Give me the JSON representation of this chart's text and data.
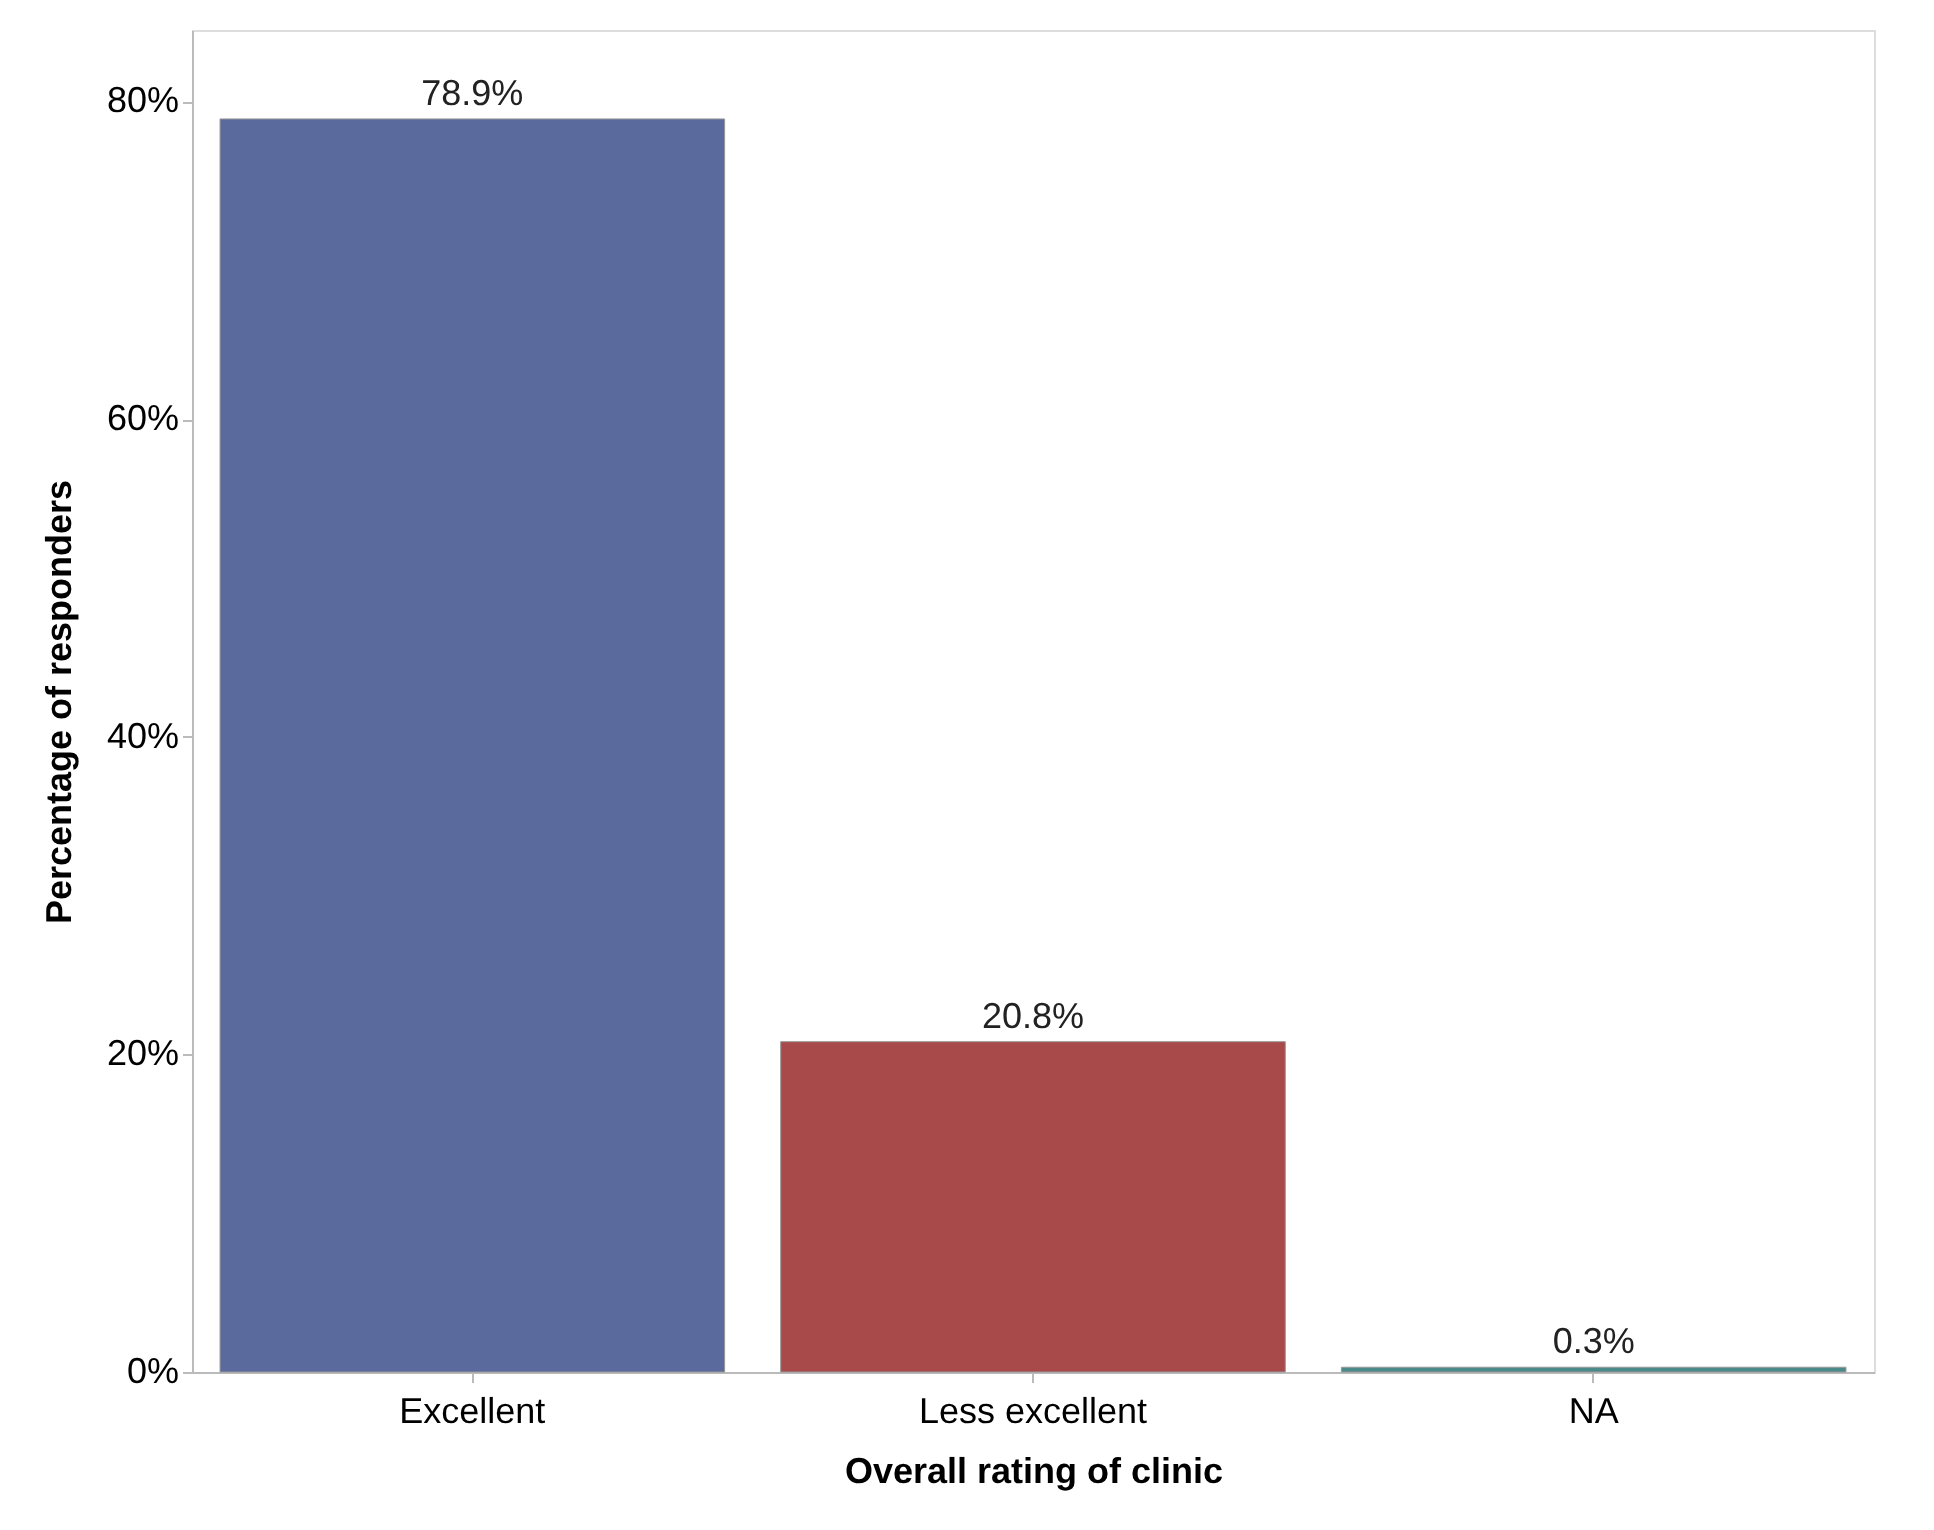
{
  "chart_data": {
    "type": "bar",
    "xlabel": "Overall rating of clinic",
    "ylabel": "Percentage of responders",
    "categories": [
      "Excellent",
      "Less excellent",
      "NA"
    ],
    "values": [
      78.9,
      20.8,
      0.3
    ],
    "colors": [
      "#5b6a9c",
      "#a84a4a",
      "#4a8a88"
    ],
    "value_labels": [
      "78.9%",
      "20.8%",
      "0.3%"
    ],
    "ylim": [
      0,
      84.5
    ],
    "yticks": [
      {
        "value": 0,
        "label": "0%"
      },
      {
        "value": 20,
        "label": "20%"
      },
      {
        "value": 40,
        "label": "40%"
      },
      {
        "value": 60,
        "label": "60%"
      },
      {
        "value": 80,
        "label": "80%"
      }
    ],
    "grid": false
  }
}
